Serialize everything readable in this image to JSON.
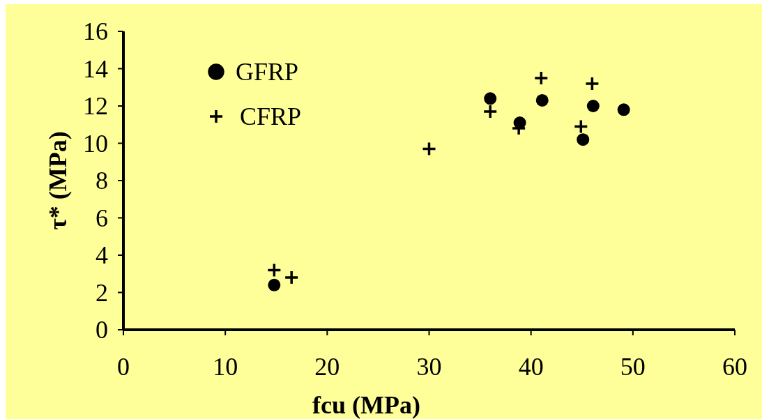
{
  "chart_data": {
    "type": "scatter",
    "xlabel": "fcu (MPa)",
    "ylabel": "τ* (MPa)",
    "xlim": [
      0,
      60
    ],
    "xticks": [
      0,
      10,
      20,
      30,
      40,
      50,
      60
    ],
    "ylim": [
      0,
      16
    ],
    "yticks": [
      0,
      2,
      4,
      6,
      8,
      10,
      12,
      14,
      16
    ],
    "legend": "top left",
    "grid": false,
    "series": [
      {
        "name": "GFRP",
        "color": "#000000",
        "marker": "circle",
        "x": [
          14.8,
          36.0,
          38.9,
          41.1,
          45.1,
          46.1,
          49.1
        ],
        "values": [
          2.4,
          12.4,
          11.1,
          12.3,
          10.2,
          12.0,
          11.8
        ]
      },
      {
        "name": "CFRP",
        "color": "#000000",
        "marker": "cross",
        "x": [
          14.8,
          16.5,
          30.0,
          36.0,
          38.8,
          41.0,
          44.9,
          46.0
        ],
        "values": [
          3.2,
          2.8,
          9.7,
          11.7,
          10.8,
          13.5,
          10.9,
          13.2
        ]
      }
    ]
  }
}
